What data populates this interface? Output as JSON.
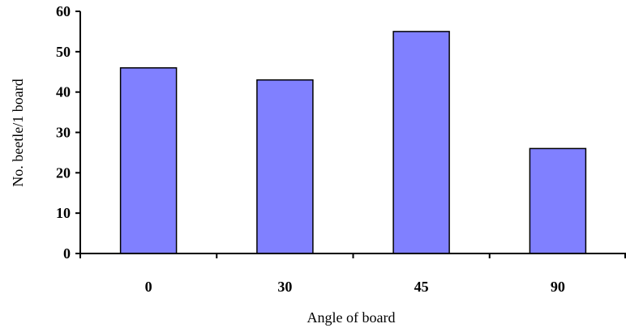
{
  "chart_data": {
    "type": "bar",
    "categories": [
      "0",
      "30",
      "45",
      "90"
    ],
    "values": [
      46,
      43,
      55,
      26
    ],
    "xlabel": "Angle of board",
    "ylabel": "No. beetle/1 board",
    "ylim": [
      0,
      60
    ],
    "yticks": [
      0,
      10,
      20,
      30,
      40,
      50,
      60
    ],
    "grid": false,
    "legend": "none",
    "colors": {
      "bar_fill": "#8080ff",
      "bar_stroke": "#000000",
      "axis": "#000000"
    }
  }
}
